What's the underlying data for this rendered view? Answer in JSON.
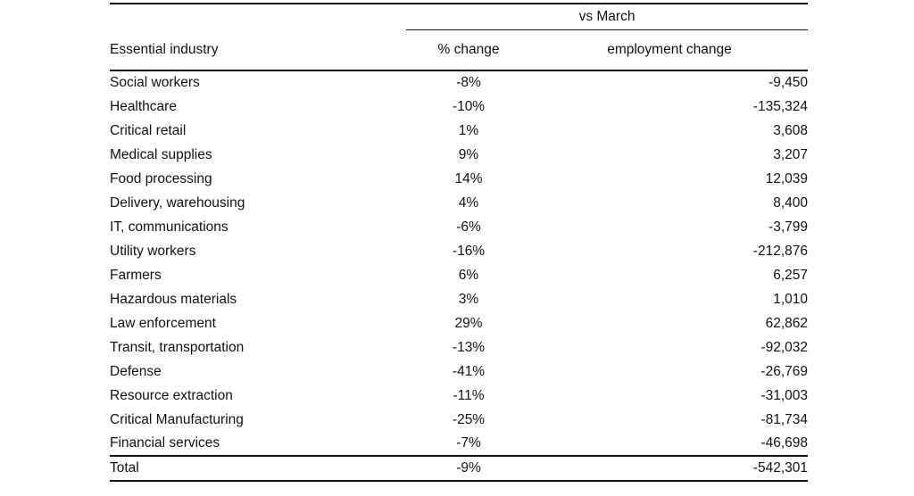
{
  "colors": {
    "background": "#ffffff",
    "text": "#111111",
    "rule": "#111111"
  },
  "chart_data": {
    "type": "table",
    "group_header": "vs March",
    "columns": [
      "Essential industry",
      "% change",
      "employment change"
    ],
    "rows": [
      [
        "Social workers",
        "-8%",
        "-9,450"
      ],
      [
        "Healthcare",
        "-10%",
        "-135,324"
      ],
      [
        "Critical retail",
        "1%",
        "3,608"
      ],
      [
        "Medical supplies",
        "9%",
        "3,207"
      ],
      [
        "Food processing",
        "14%",
        "12,039"
      ],
      [
        "Delivery, warehousing",
        "4%",
        "8,400"
      ],
      [
        "IT, communications",
        "-6%",
        "-3,799"
      ],
      [
        "Utility workers",
        "-16%",
        "-212,876"
      ],
      [
        "Farmers",
        "6%",
        "6,257"
      ],
      [
        "Hazardous materials",
        "3%",
        "1,010"
      ],
      [
        "Law enforcement",
        "29%",
        "62,862"
      ],
      [
        "Transit, transportation",
        "-13%",
        "-92,032"
      ],
      [
        "Defense",
        "-41%",
        "-26,769"
      ],
      [
        "Resource extraction",
        "-11%",
        "-31,003"
      ],
      [
        "Critical Manufacturing",
        "-25%",
        "-81,734"
      ],
      [
        "Financial services",
        "-7%",
        "-46,698"
      ]
    ],
    "total": [
      "Total",
      "-9%",
      "-542,301"
    ]
  }
}
